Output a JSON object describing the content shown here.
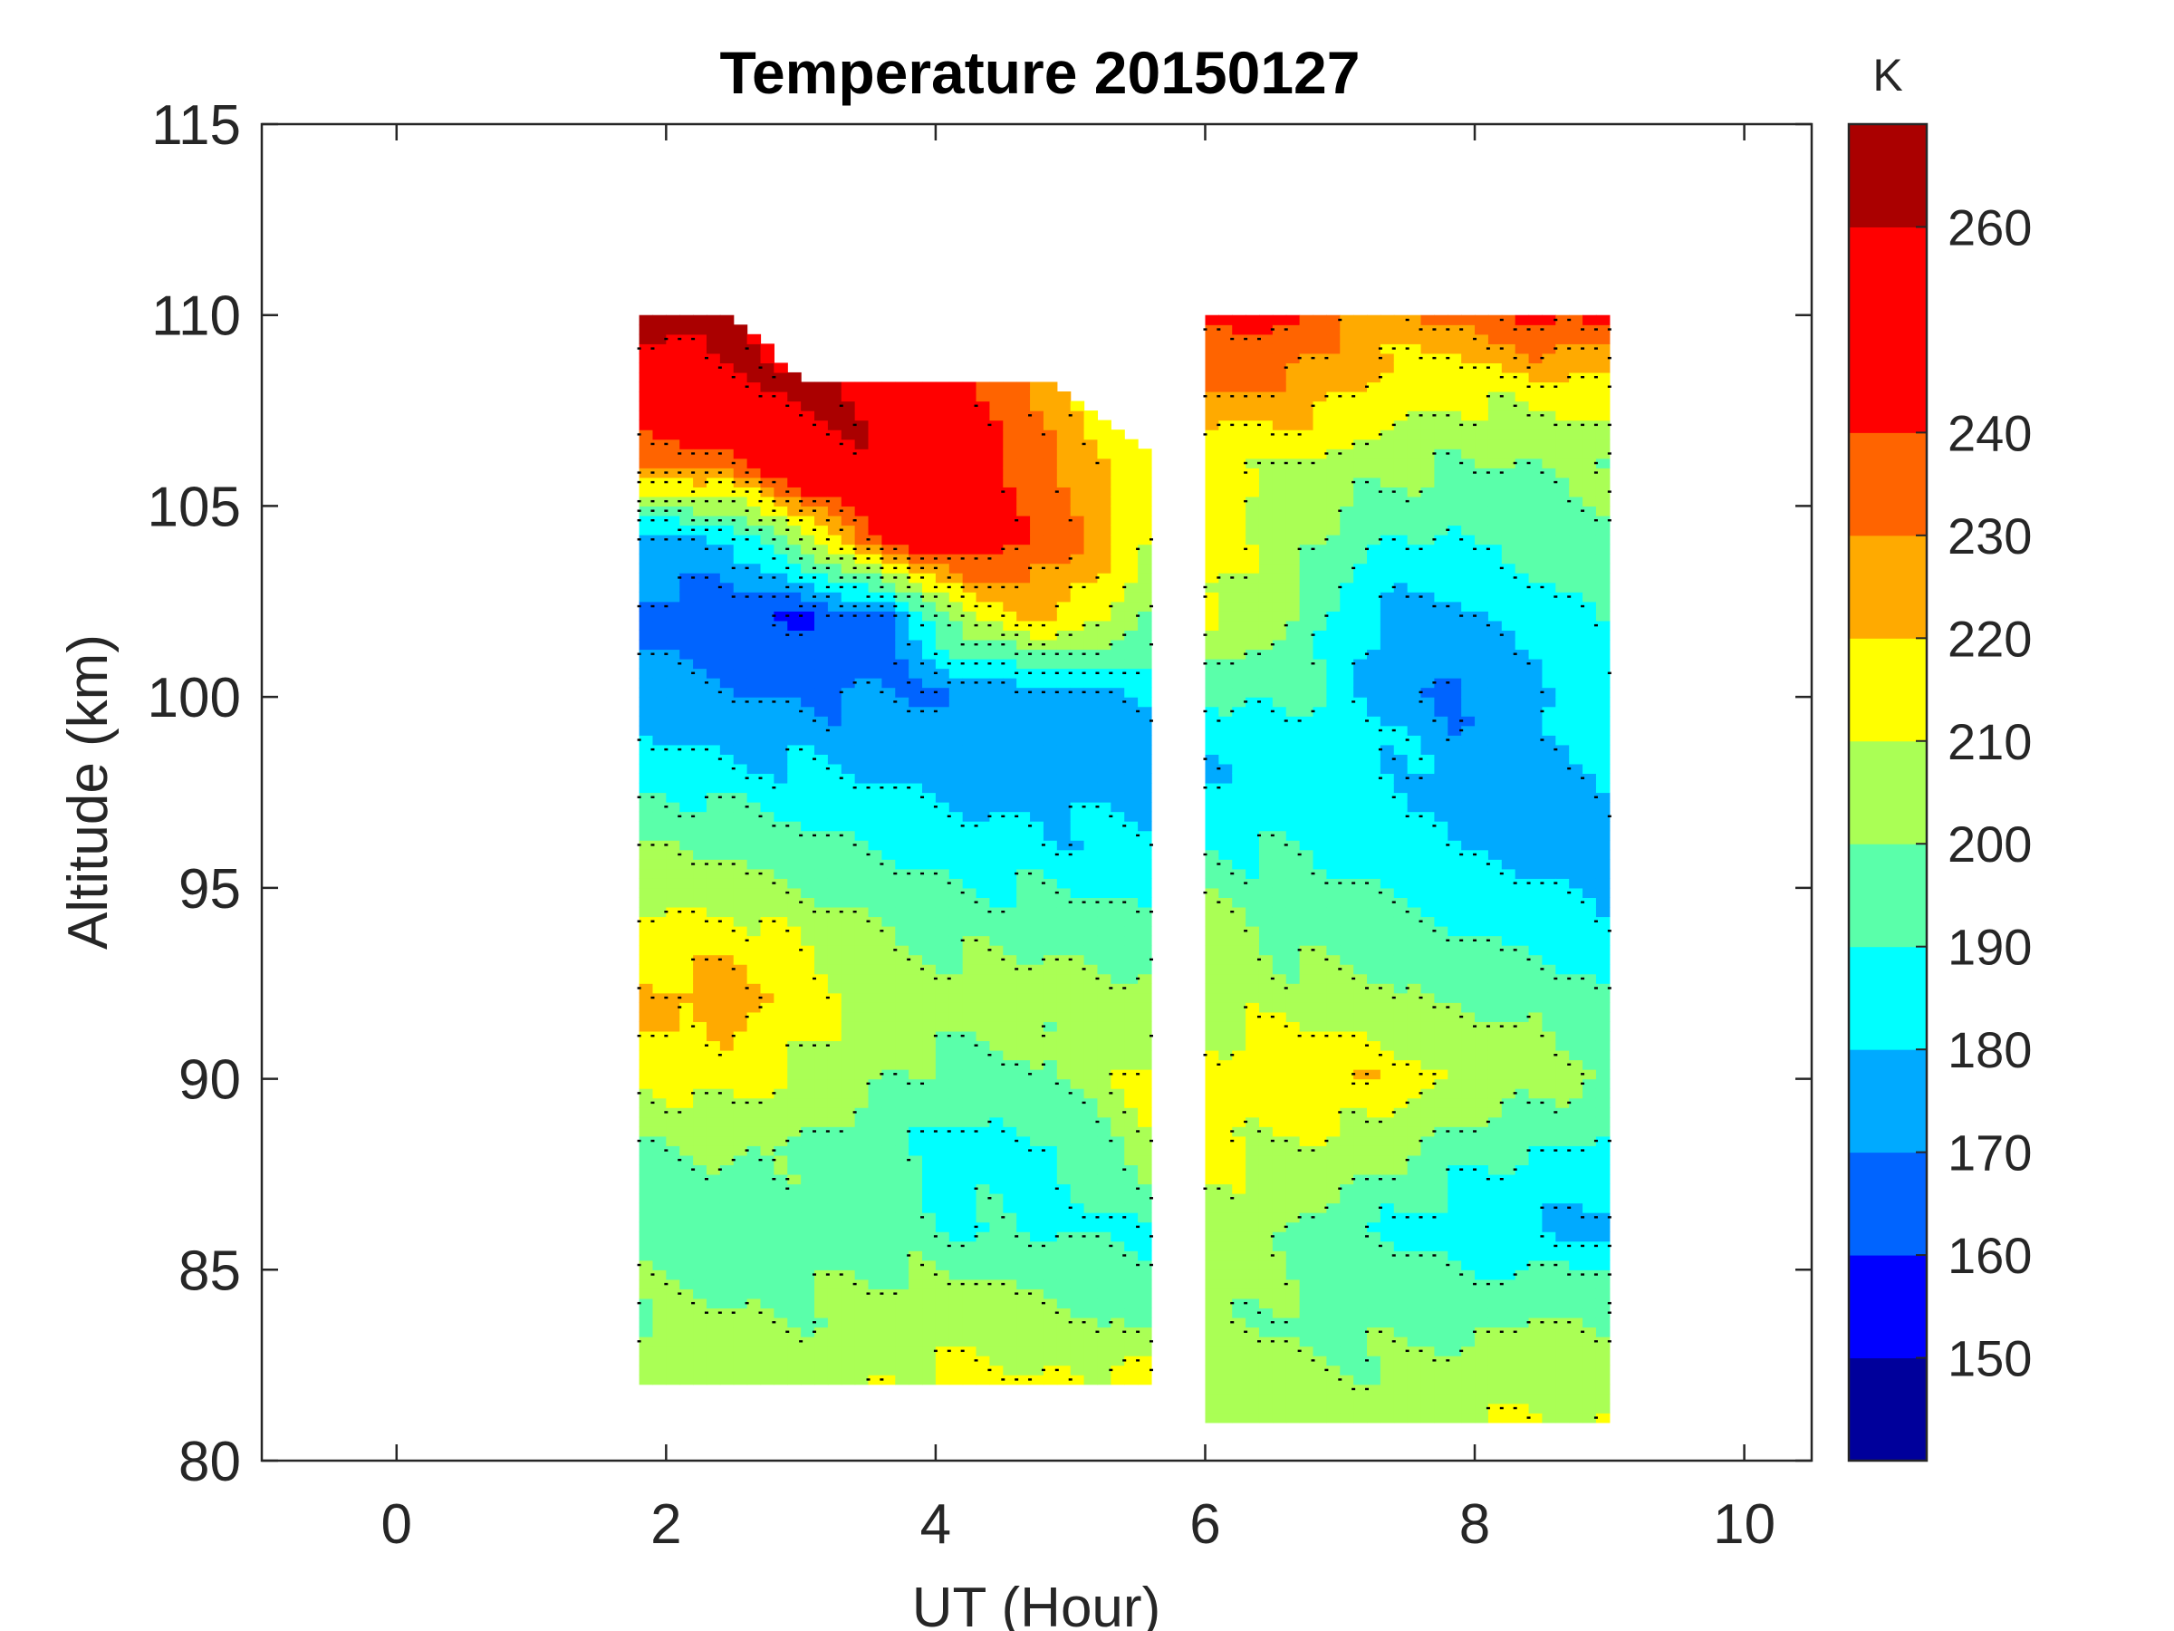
{
  "chart_data": {
    "type": "heatmap",
    "subtype": "filled-contour",
    "title": "Temperature 20150127",
    "xlabel": "UT (Hour)",
    "ylabel": "Altitude (km)",
    "xlim": [
      -1,
      10.5
    ],
    "ylim": [
      80,
      115
    ],
    "xticks": [
      0,
      2,
      4,
      6,
      8,
      10
    ],
    "yticks": [
      80,
      85,
      90,
      95,
      100,
      105,
      110,
      115
    ],
    "colorbar": {
      "label": "K",
      "range": [
        140,
        270
      ],
      "levels": [
        140,
        150,
        160,
        170,
        180,
        190,
        200,
        210,
        220,
        230,
        240,
        260,
        270
      ],
      "colors": [
        "#00009b",
        "#0000ff",
        "#0064ff",
        "#00aaff",
        "#00ffff",
        "#5affaa",
        "#aaff55",
        "#ffff00",
        "#ffaa00",
        "#ff6400",
        "#ff0000",
        "#aa0000"
      ],
      "tick_labels": [
        150,
        160,
        170,
        180,
        190,
        200,
        210,
        220,
        230,
        240,
        260
      ]
    },
    "segments": [
      {
        "name": "segment-1",
        "ut_range": [
          1.8,
          5.6
        ],
        "alt_range": [
          82,
          110
        ],
        "columns": [
          {
            "ut": 1.8,
            "profile": [
              [
                82,
                205
              ],
              [
                84,
                200
              ],
              [
                86,
                196
              ],
              [
                88,
                200
              ],
              [
                90,
                212
              ],
              [
                92,
                221
              ],
              [
                94,
                212
              ],
              [
                96,
                199
              ],
              [
                98,
                186
              ],
              [
                100,
                174
              ],
              [
                102,
                168
              ],
              [
                104,
                175
              ],
              [
                106,
                232
              ],
              [
                108,
                255
              ],
              [
                110,
                262
              ]
            ]
          },
          {
            "ut": 2.4,
            "profile": [
              [
                82,
                208
              ],
              [
                84,
                200
              ],
              [
                86,
                196
              ],
              [
                88,
                201
              ],
              [
                90,
                216
              ],
              [
                92,
                226
              ],
              [
                94,
                213
              ],
              [
                96,
                198
              ],
              [
                98,
                183
              ],
              [
                100,
                171
              ],
              [
                102,
                162
              ],
              [
                104,
                180
              ],
              [
                106,
                235
              ],
              [
                108,
                255
              ],
              [
                110,
                262
              ]
            ]
          },
          {
            "ut": 3.0,
            "profile": [
              [
                82,
                206
              ],
              [
                84,
                200
              ],
              [
                86,
                195
              ],
              [
                88,
                198
              ],
              [
                90,
                208
              ],
              [
                92,
                214
              ],
              [
                94,
                206
              ],
              [
                96,
                193
              ],
              [
                98,
                180
              ],
              [
                100,
                169
              ],
              [
                102,
                160
              ],
              [
                104,
                205
              ],
              [
                106,
                258
              ],
              [
                108,
                262
              ]
            ]
          },
          {
            "ut": 3.6,
            "profile": [
              [
                82,
                210
              ],
              [
                84,
                204
              ],
              [
                86,
                196
              ],
              [
                88,
                192
              ],
              [
                90,
                200
              ],
              [
                92,
                206
              ],
              [
                94,
                200
              ],
              [
                96,
                189
              ],
              [
                98,
                177
              ],
              [
                100,
                169
              ],
              [
                102,
                168
              ],
              [
                104,
                245
              ],
              [
                106,
                258
              ],
              [
                108,
                255
              ]
            ]
          },
          {
            "ut": 4.2,
            "profile": [
              [
                82,
                212
              ],
              [
                84,
                204
              ],
              [
                86,
                190
              ],
              [
                88,
                185
              ],
              [
                90,
                196
              ],
              [
                92,
                204
              ],
              [
                94,
                196
              ],
              [
                96,
                185
              ],
              [
                98,
                175
              ],
              [
                100,
                171
              ],
              [
                102,
                212
              ],
              [
                104,
                248
              ],
              [
                106,
                252
              ],
              [
                108,
                242
              ]
            ]
          },
          {
            "ut": 4.8,
            "profile": [
              [
                82,
                212
              ],
              [
                84,
                200
              ],
              [
                86,
                188
              ],
              [
                88,
                187
              ],
              [
                90,
                198
              ],
              [
                92,
                205
              ],
              [
                94,
                194
              ],
              [
                96,
                183
              ],
              [
                98,
                175
              ],
              [
                100,
                177
              ],
              [
                102,
                222
              ],
              [
                104,
                238
              ],
              [
                106,
                230
              ],
              [
                108,
                225
              ]
            ]
          },
          {
            "ut": 5.6,
            "profile": [
              [
                82,
                212
              ],
              [
                84,
                194
              ],
              [
                86,
                190
              ],
              [
                88,
                208
              ],
              [
                90,
                215
              ],
              [
                92,
                205
              ],
              [
                94,
                192
              ],
              [
                96,
                181
              ],
              [
                98,
                175
              ],
              [
                100,
                182
              ],
              [
                102,
                198
              ],
              [
                104,
                210
              ],
              [
                106,
                212
              ]
            ]
          }
        ]
      },
      {
        "name": "segment-2",
        "ut_range": [
          6.0,
          9.0
        ],
        "alt_range": [
          81,
          110
        ],
        "columns": [
          {
            "ut": 6.0,
            "profile": [
              [
                81,
                202
              ],
              [
                84,
                205
              ],
              [
                86,
                208
              ],
              [
                88,
                212
              ],
              [
                90,
                212
              ],
              [
                92,
                208
              ],
              [
                94,
                202
              ],
              [
                96,
                190
              ],
              [
                98,
                180
              ],
              [
                100,
                190
              ],
              [
                102,
                212
              ],
              [
                104,
                213
              ],
              [
                106,
                210
              ],
              [
                108,
                232
              ],
              [
                110,
                245
              ]
            ]
          },
          {
            "ut": 6.6,
            "profile": [
              [
                81,
                205
              ],
              [
                84,
                198
              ],
              [
                86,
                200
              ],
              [
                88,
                208
              ],
              [
                90,
                218
              ],
              [
                92,
                205
              ],
              [
                94,
                196
              ],
              [
                96,
                188
              ],
              [
                98,
                185
              ],
              [
                100,
                195
              ],
              [
                102,
                200
              ],
              [
                104,
                205
              ],
              [
                106,
                210
              ],
              [
                108,
                228
              ],
              [
                110,
                242
              ]
            ]
          },
          {
            "ut": 7.2,
            "profile": [
              [
                81,
                205
              ],
              [
                84,
                196
              ],
              [
                86,
                190
              ],
              [
                88,
                205
              ],
              [
                90,
                218
              ],
              [
                92,
                202
              ],
              [
                94,
                192
              ],
              [
                96,
                186
              ],
              [
                98,
                184
              ],
              [
                100,
                178
              ],
              [
                102,
                178
              ],
              [
                104,
                190
              ],
              [
                106,
                205
              ],
              [
                108,
                218
              ],
              [
                110,
                225
              ]
            ]
          },
          {
            "ut": 7.8,
            "profile": [
              [
                81,
                208
              ],
              [
                84,
                195
              ],
              [
                86,
                185
              ],
              [
                88,
                195
              ],
              [
                90,
                210
              ],
              [
                92,
                198
              ],
              [
                94,
                188
              ],
              [
                96,
                178
              ],
              [
                98,
                176
              ],
              [
                100,
                168
              ],
              [
                102,
                176
              ],
              [
                104,
                190
              ],
              [
                106,
                200
              ],
              [
                108,
                212
              ],
              [
                110,
                232
              ]
            ]
          },
          {
            "ut": 8.4,
            "profile": [
              [
                81,
                210
              ],
              [
                84,
                198
              ],
              [
                86,
                180
              ],
              [
                88,
                190
              ],
              [
                90,
                205
              ],
              [
                92,
                198
              ],
              [
                94,
                185
              ],
              [
                96,
                176
              ],
              [
                98,
                178
              ],
              [
                100,
                180
              ],
              [
                102,
                185
              ],
              [
                104,
                195
              ],
              [
                106,
                200
              ],
              [
                108,
                215
              ],
              [
                110,
                248
              ]
            ]
          },
          {
            "ut": 9.0,
            "profile": [
              [
                81,
                210
              ],
              [
                84,
                200
              ],
              [
                86,
                176
              ],
              [
                88,
                188
              ],
              [
                90,
                200
              ],
              [
                92,
                192
              ],
              [
                94,
                178
              ],
              [
                96,
                178
              ],
              [
                98,
                183
              ],
              [
                100,
                188
              ],
              [
                102,
                195
              ],
              [
                104,
                198
              ],
              [
                106,
                200
              ],
              [
                108,
                218
              ],
              [
                110,
                240
              ]
            ]
          }
        ]
      }
    ]
  }
}
